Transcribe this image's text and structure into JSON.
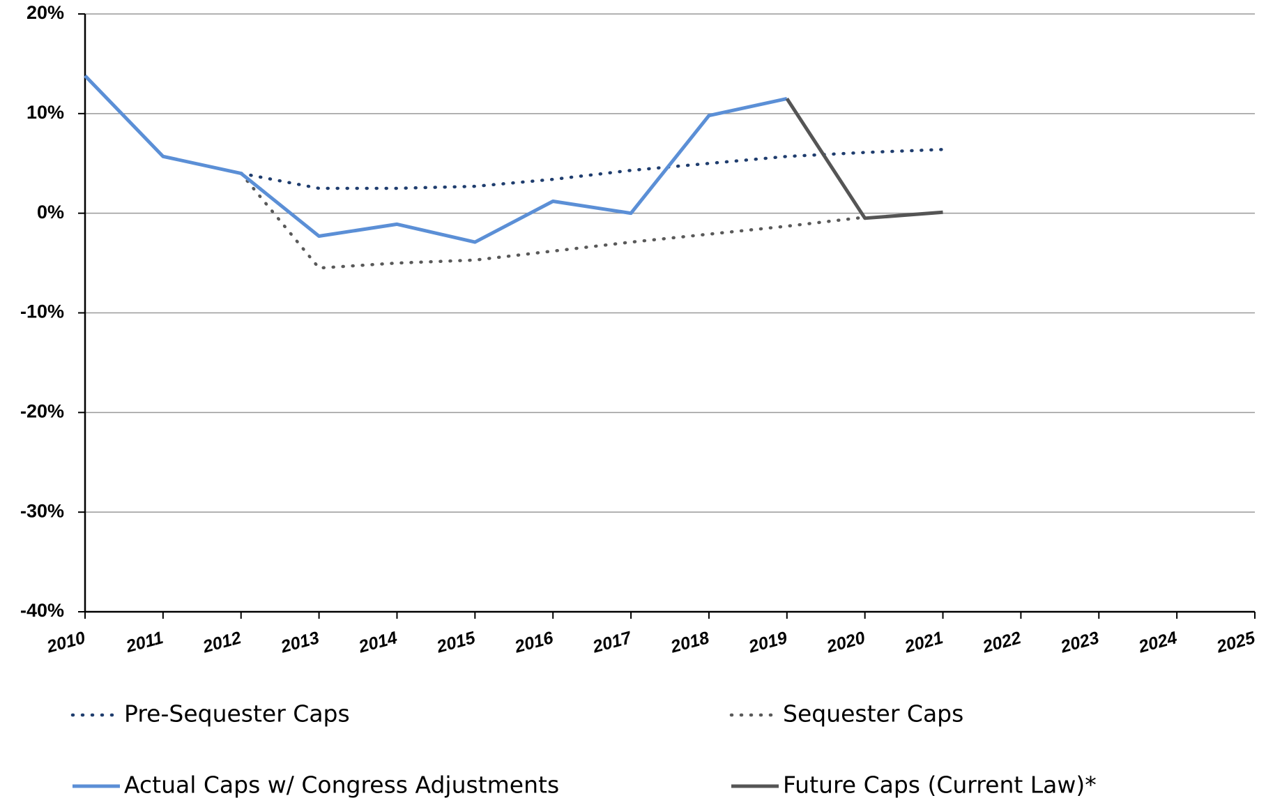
{
  "chart_data": {
    "type": "line",
    "x": [
      2010,
      2011,
      2012,
      2013,
      2014,
      2015,
      2016,
      2017,
      2018,
      2019,
      2020,
      2021,
      2022,
      2023,
      2024,
      2025
    ],
    "xlim": [
      2010,
      2025
    ],
    "xticks": [
      2010,
      2011,
      2012,
      2013,
      2014,
      2015,
      2016,
      2017,
      2018,
      2019,
      2020,
      2021,
      2022,
      2023,
      2024,
      2025
    ],
    "ylim": [
      -40,
      20
    ],
    "yticks": [
      {
        "value": -40,
        "label": "-40%"
      },
      {
        "value": -30,
        "label": "-30%"
      },
      {
        "value": -20,
        "label": "-20%"
      },
      {
        "value": -10,
        "label": "-10%"
      },
      {
        "value": 0,
        "label": "0%"
      },
      {
        "value": 10,
        "label": "10%"
      },
      {
        "value": 20,
        "label": "20%"
      }
    ],
    "grid": true,
    "series": [
      {
        "name": "Pre-Sequester Caps",
        "color": "#1f3d6e",
        "style": "dotted",
        "values": [
          null,
          null,
          4.0,
          2.5,
          2.5,
          2.7,
          3.4,
          4.3,
          5.0,
          5.7,
          6.1,
          6.4,
          null,
          null,
          null,
          null
        ]
      },
      {
        "name": "Sequester Caps",
        "color": "#595959",
        "style": "dotted",
        "values": [
          null,
          null,
          4.0,
          -5.5,
          -5.0,
          -4.7,
          -3.8,
          -2.9,
          -2.1,
          -1.3,
          -0.4,
          null,
          null,
          null,
          null,
          null
        ]
      },
      {
        "name": "Actual Caps w/ Congress Adjustments",
        "color": "#5b8fd6",
        "style": "solid",
        "values": [
          13.8,
          5.7,
          4.0,
          -2.3,
          -1.1,
          -2.9,
          1.2,
          0.0,
          9.8,
          11.5,
          null,
          null,
          null,
          null,
          null,
          null
        ]
      },
      {
        "name": "Future Caps (Current Law)*",
        "color": "#555555",
        "style": "solid",
        "values": [
          null,
          null,
          null,
          null,
          null,
          null,
          null,
          null,
          null,
          11.5,
          -0.5,
          0.1,
          null,
          null,
          null,
          null
        ]
      }
    ]
  }
}
